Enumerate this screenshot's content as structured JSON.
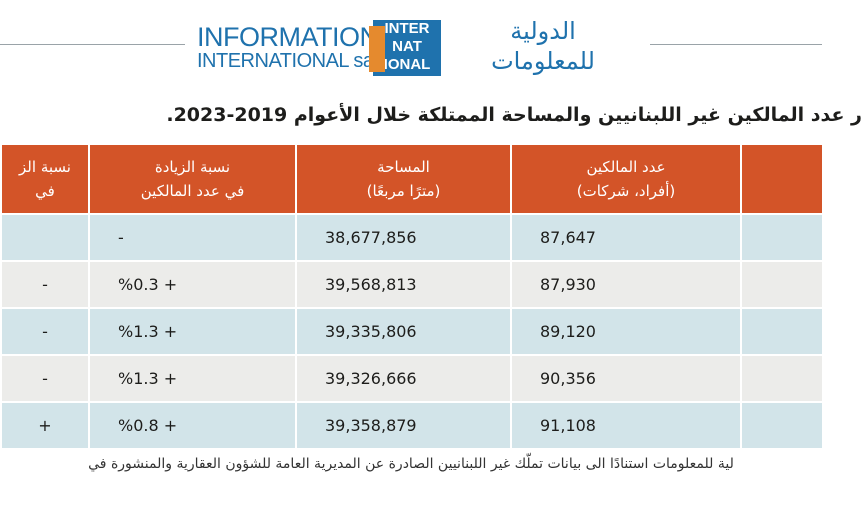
{
  "logo": {
    "english_line1": "INFORMATION",
    "english_line2": "INTERNATIONAL sal",
    "mark": [
      "INTER",
      "NAT",
      "IONAL"
    ],
    "arabic_line1": "الدولية",
    "arabic_line2": "للمعلومات"
  },
  "title": "ر عدد المالكين غير اللبنانيين والمساحة الممتلكة خلال الأعوام 2019-2023.",
  "table": {
    "headers": [
      [
        "عدد المالكين",
        "(أفراد، شركات)"
      ],
      [
        "المساحة",
        "(مترًا مربعًا)"
      ],
      [
        "نسبة الزيادة",
        "في عدد المالكين"
      ],
      [
        "نسبة الز",
        "في"
      ]
    ],
    "rows": [
      [
        "87,647",
        "38,677,856",
        "-"
      ],
      [
        "87,930",
        "39,568,813",
        "%0.3 +",
        "-"
      ],
      [
        "89,120",
        "39,335,806",
        "%1.3 +",
        "-"
      ],
      [
        "90,356",
        "39,326,666",
        "%1.3 +",
        "-"
      ],
      [
        "91,108",
        "39,358,879",
        "%0.8 +",
        "+"
      ]
    ]
  },
  "footer": "لية للمعلومات استنادًا الى بيانات تملّك غير اللبنانيين الصادرة عن المديرية العامة للشؤون العقارية والمنشورة في"
}
